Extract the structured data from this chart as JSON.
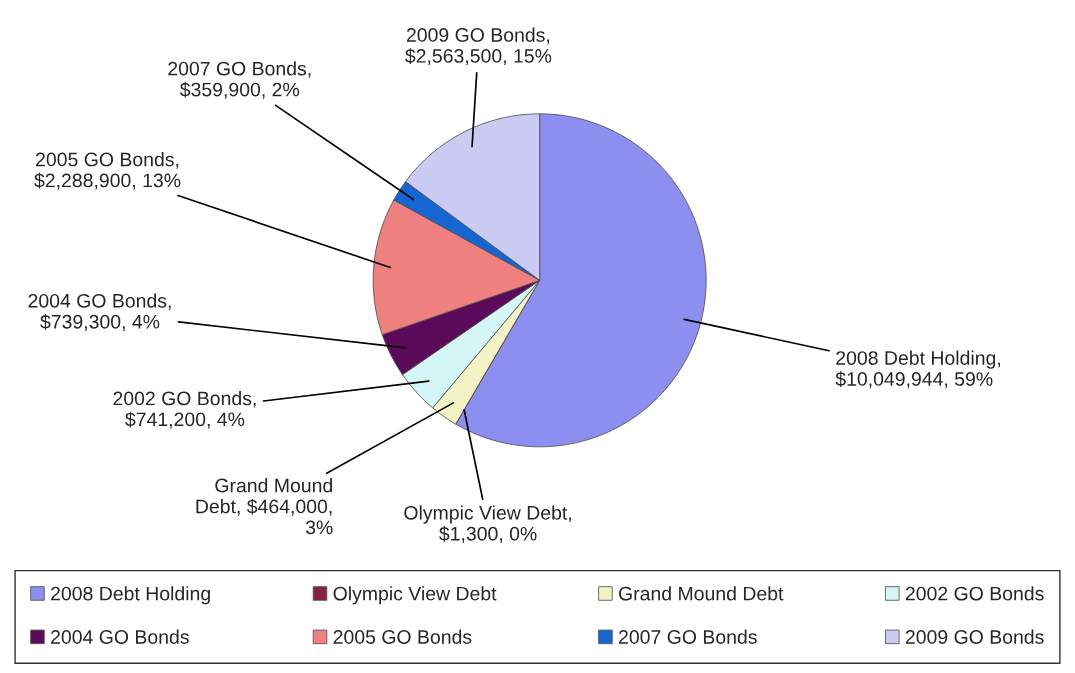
{
  "chart_data": {
    "type": "pie",
    "categories": [
      "2008 Debt Holding",
      "Olympic View Debt",
      "Grand Mound Debt",
      "2002 GO Bonds",
      "2004 GO Bonds",
      "2005 GO Bonds",
      "2007 GO Bonds",
      "2009 GO Bonds"
    ],
    "values": [
      10049944,
      1300,
      464000,
      741200,
      739300,
      2288900,
      359900,
      2563500
    ],
    "colors": [
      "#8c8ff0",
      "#8a2040",
      "#f2f2c4",
      "#d4f6f6",
      "#5c0a5a",
      "#f08080",
      "#1466d2",
      "#cacaf2"
    ],
    "value_labels": [
      "2008 Debt Holding,\n$10,049,944, 59%",
      "Olympic View Debt,\n$1,300, 0%",
      "Grand Mound\nDebt, $464,000,\n3%",
      "2002 GO Bonds,\n$741,200, 4%",
      "2004 GO Bonds,\n$739,300, 4%",
      "2005 GO Bonds,\n$2,288,900, 13%",
      "2007 GO Bonds,\n$359,900, 2%",
      "2009 GO Bonds,\n$2,563,500, 15%"
    ],
    "legend": "bottom"
  }
}
